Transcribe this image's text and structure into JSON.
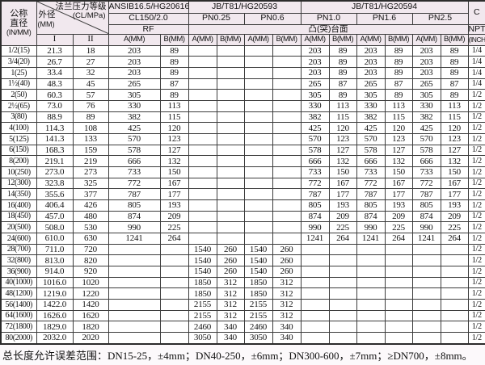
{
  "header": {
    "nominal_diameter_line1": "公称",
    "nominal_diameter_line2": "直径",
    "nominal_diameter_unit": "(IN/MM)",
    "outer_diameter": "外径",
    "outer_diameter_unit": "(MM)",
    "pressure_rating": "法兰压力等级",
    "pressure_rating_unit": "(CL/MPa)",
    "col_I": "I",
    "col_II": "II",
    "standards": [
      "ANSIB16.5/HG20616",
      "JB/T81/HG20593",
      "JB/T81/HG20594"
    ],
    "c_label": "C",
    "pressures": [
      "CL150/2.0",
      "PN0.25",
      "PN0.6",
      "PN1.0",
      "PN1.6",
      "PN2.5"
    ],
    "rf_label": "RF",
    "raised_face_label": "凸(突)台面",
    "npt_label": "NPT",
    "a_label": "A(MM)",
    "b_label": "B(MM)",
    "inch_label": "(INCH)"
  },
  "table": {
    "rows": [
      [
        "1/2(15)",
        "21.3",
        "18",
        "203",
        "89",
        "",
        "",
        "",
        "",
        "203",
        "89",
        "203",
        "89",
        "203",
        "89",
        "1/4"
      ],
      [
        "3/4(20)",
        "26.7",
        "27",
        "203",
        "89",
        "",
        "",
        "",
        "",
        "203",
        "89",
        "203",
        "89",
        "203",
        "89",
        "1/4"
      ],
      [
        "1(25)",
        "33.4",
        "32",
        "203",
        "89",
        "",
        "",
        "",
        "",
        "203",
        "89",
        "203",
        "89",
        "203",
        "89",
        "1/4"
      ],
      [
        "1½(40)",
        "48.3",
        "45",
        "265",
        "87",
        "",
        "",
        "",
        "",
        "265",
        "87",
        "265",
        "87",
        "265",
        "87",
        "1/4"
      ],
      [
        "2(50)",
        "60.3",
        "57",
        "305",
        "89",
        "",
        "",
        "",
        "",
        "305",
        "89",
        "305",
        "89",
        "305",
        "89",
        "1/2"
      ],
      [
        "2½(65)",
        "73.0",
        "76",
        "330",
        "113",
        "",
        "",
        "",
        "",
        "330",
        "113",
        "330",
        "113",
        "330",
        "113",
        "1/2"
      ],
      [
        "3(80)",
        "88.9",
        "89",
        "382",
        "115",
        "",
        "",
        "",
        "",
        "382",
        "115",
        "382",
        "115",
        "382",
        "115",
        "1/2"
      ],
      [
        "4(100)",
        "114.3",
        "108",
        "425",
        "120",
        "",
        "",
        "",
        "",
        "425",
        "120",
        "425",
        "120",
        "425",
        "120",
        "1/2"
      ],
      [
        "5(125)",
        "141.3",
        "133",
        "570",
        "123",
        "",
        "",
        "",
        "",
        "570",
        "123",
        "570",
        "123",
        "570",
        "123",
        "1/2"
      ],
      [
        "6(150)",
        "168.3",
        "159",
        "578",
        "127",
        "",
        "",
        "",
        "",
        "578",
        "127",
        "578",
        "127",
        "578",
        "127",
        "1/2"
      ],
      [
        "8(200)",
        "219.1",
        "219",
        "666",
        "132",
        "",
        "",
        "",
        "",
        "666",
        "132",
        "666",
        "132",
        "666",
        "132",
        "1/2"
      ],
      [
        "10(250)",
        "273.0",
        "273",
        "733",
        "150",
        "",
        "",
        "",
        "",
        "733",
        "150",
        "733",
        "150",
        "733",
        "150",
        "1/2"
      ],
      [
        "12(300)",
        "323.8",
        "325",
        "772",
        "167",
        "",
        "",
        "",
        "",
        "772",
        "167",
        "772",
        "167",
        "772",
        "167",
        "1/2"
      ],
      [
        "14(350)",
        "355.6",
        "377",
        "787",
        "177",
        "",
        "",
        "",
        "",
        "787",
        "177",
        "787",
        "177",
        "787",
        "177",
        "1/2"
      ],
      [
        "16(400)",
        "406.4",
        "426",
        "805",
        "193",
        "",
        "",
        "",
        "",
        "805",
        "193",
        "805",
        "193",
        "805",
        "193",
        "1/2"
      ],
      [
        "18(450)",
        "457.0",
        "480",
        "874",
        "209",
        "",
        "",
        "",
        "",
        "874",
        "209",
        "874",
        "209",
        "874",
        "209",
        "1/2"
      ],
      [
        "20(500)",
        "508.0",
        "530",
        "990",
        "225",
        "",
        "",
        "",
        "",
        "990",
        "225",
        "990",
        "225",
        "990",
        "225",
        "1/2"
      ],
      [
        "24(600)",
        "610.0",
        "630",
        "1241",
        "264",
        "",
        "",
        "",
        "",
        "1241",
        "264",
        "1241",
        "264",
        "1241",
        "264",
        "1/2"
      ],
      [
        "28(700)",
        "711.0",
        "720",
        "",
        "",
        "1540",
        "260",
        "1540",
        "260",
        "",
        "",
        "",
        "",
        "",
        "",
        "1/2"
      ],
      [
        "32(800)",
        "813.0",
        "820",
        "",
        "",
        "1540",
        "260",
        "1540",
        "260",
        "",
        "",
        "",
        "",
        "",
        "",
        "1/2"
      ],
      [
        "36(900)",
        "914.0",
        "920",
        "",
        "",
        "1540",
        "260",
        "1540",
        "260",
        "",
        "",
        "",
        "",
        "",
        "",
        "1/2"
      ],
      [
        "40(1000)",
        "1016.0",
        "1020",
        "",
        "",
        "1850",
        "312",
        "1850",
        "312",
        "",
        "",
        "",
        "",
        "",
        "",
        "1/2"
      ],
      [
        "48(1200)",
        "1219.0",
        "1220",
        "",
        "",
        "1850",
        "312",
        "1850",
        "312",
        "",
        "",
        "",
        "",
        "",
        "",
        "1/2"
      ],
      [
        "56(1400)",
        "1422.0",
        "1420",
        "",
        "",
        "2155",
        "312",
        "2155",
        "312",
        "",
        "",
        "",
        "",
        "",
        "",
        "1/2"
      ],
      [
        "64(1600)",
        "1626.0",
        "1620",
        "",
        "",
        "2155",
        "312",
        "2155",
        "312",
        "",
        "",
        "",
        "",
        "",
        "",
        "1/2"
      ],
      [
        "72(1800)",
        "1829.0",
        "1820",
        "",
        "",
        "2460",
        "340",
        "2460",
        "340",
        "",
        "",
        "",
        "",
        "",
        "",
        "1/2"
      ],
      [
        "80(2000)",
        "2032.0",
        "2020",
        "",
        "",
        "3050",
        "340",
        "3050",
        "340",
        "",
        "",
        "",
        "",
        "",
        "",
        "1/2"
      ]
    ]
  },
  "footer": {
    "note": "总长度允许误差范围：DN15-25，±4mm；DN40-250，±6mm；DN300-600，±7mm；≥DN700，±8mm。"
  },
  "colors": {
    "header_bg": "#f1e8ee",
    "grid_line": "#3c3c3c",
    "page_bg": "#fcf9fb",
    "text": "#111111"
  }
}
